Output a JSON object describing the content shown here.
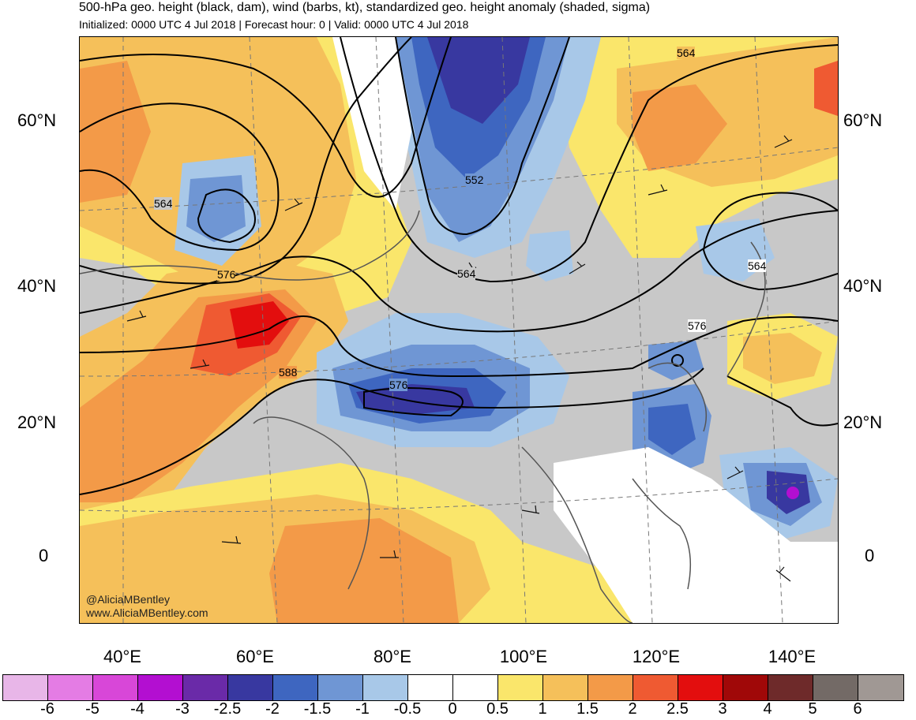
{
  "header": {
    "title": "500-hPa geo. height (black, dam), wind (barbs, kt), standardized geo. height anomaly (shaded, sigma)",
    "subtitle": "Initialized: 0000 UTC 4 Jul 2018 | Forecast hour: 0 | Valid: 0000 UTC 4 Jul 2018"
  },
  "map": {
    "lat_labels": [
      "60°N",
      "40°N",
      "20°N",
      "0"
    ],
    "lon_labels": [
      "40°E",
      "60°E",
      "80°E",
      "100°E",
      "120°E",
      "140°E"
    ],
    "contour_labels": [
      "564",
      "564",
      "552",
      "564",
      "564",
      "576",
      "576",
      "576",
      "588"
    ],
    "credit_handle": "@AliciaMBentley",
    "credit_site": "www.AliciaMBentley.com"
  },
  "colorbar": {
    "colors": [
      "#e8b6e8",
      "#e47ce4",
      "#d847d8",
      "#b30fd1",
      "#6a2aa8",
      "#3838a0",
      "#3e66c0",
      "#6f96d4",
      "#a8c8e8",
      "#ffffff",
      "#ffffff",
      "#fae66b",
      "#f5c05a",
      "#f39a48",
      "#ef5a32",
      "#e30e0e",
      "#a00808",
      "#6e2a2a",
      "#736a66",
      "#a09894"
    ],
    "labels": [
      "-6",
      "-5",
      "-4",
      "-3",
      "-2.5",
      "-2",
      "-1.5",
      "-1",
      "-0.5",
      "0",
      "0.5",
      "1",
      "1.5",
      "2",
      "2.5",
      "3",
      "4",
      "5",
      "6"
    ]
  }
}
